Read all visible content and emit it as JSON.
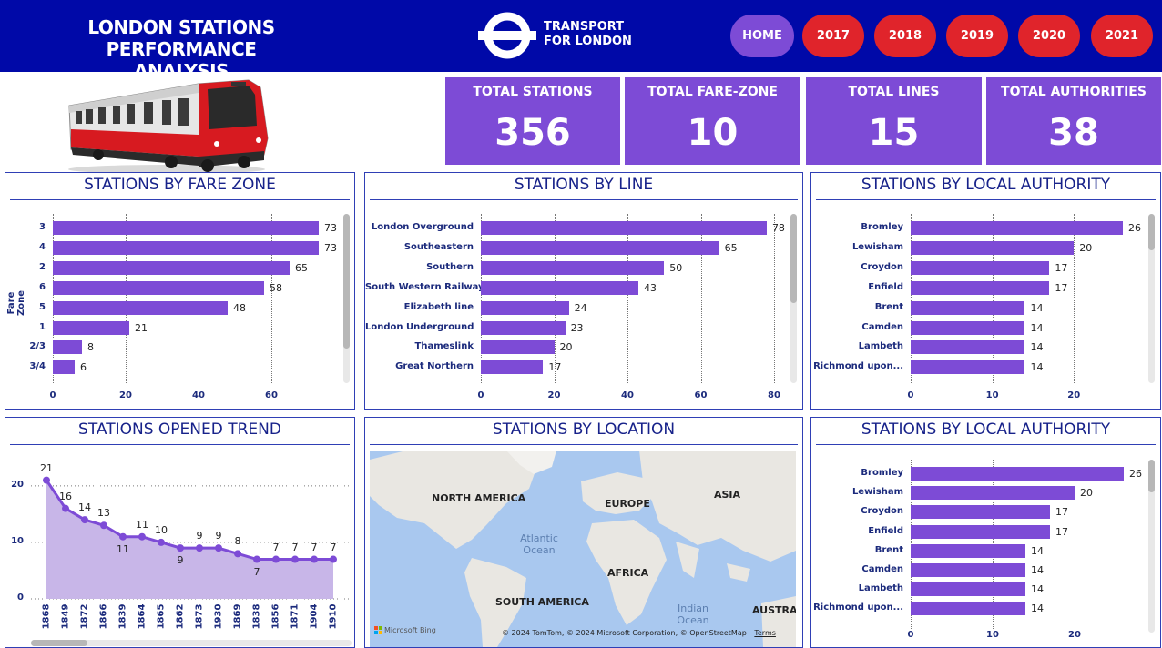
{
  "header": {
    "title_line1": "LONDON STATIONS PERFORMANCE",
    "title_line2": "ANALYSIS",
    "brand_line1": "TRANSPORT",
    "brand_line2": "FOR LONDON",
    "nav": [
      "HOME",
      "2017",
      "2018",
      "2019",
      "2020",
      "2021"
    ],
    "colors": {
      "header_bg": "#0009a8",
      "home": "#7d4bd6",
      "year": "#e0242b"
    }
  },
  "kpis": [
    {
      "label": "TOTAL STATIONS",
      "value": "356"
    },
    {
      "label": "TOTAL FARE-ZONE",
      "value": "10"
    },
    {
      "label": "TOTAL LINES",
      "value": "15"
    },
    {
      "label": "TOTAL AUTHORITIES",
      "value": "38"
    }
  ],
  "panels": {
    "fare_zone": {
      "title": "STATIONS BY FARE ZONE",
      "ylabel": "Fare Zone"
    },
    "line": {
      "title": "STATIONS BY LINE"
    },
    "authority": {
      "title": "STATIONS BY LOCAL AUTHORITY"
    },
    "trend": {
      "title": "STATIONS OPENED TREND"
    },
    "location": {
      "title": "STATIONS BY LOCATION"
    },
    "authority2": {
      "title": "STATIONS BY LOCAL AUTHORITY"
    }
  },
  "map": {
    "labels": [
      "NORTH AMERICA",
      "EUROPE",
      "ASIA",
      "AFRICA",
      "SOUTH AMERICA",
      "AUSTRAL"
    ],
    "oceans": [
      "Atlantic",
      "Ocean",
      "Indian",
      "Ocean"
    ],
    "bing": "Microsoft Bing",
    "copyright": "© 2024 TomTom, © 2024 Microsoft Corporation, © OpenStreetMap",
    "terms": "Terms"
  },
  "chart_data": [
    {
      "type": "bar",
      "title": "STATIONS BY FARE ZONE",
      "ylabel": "Fare Zone",
      "categories": [
        "3",
        "4",
        "2",
        "6",
        "5",
        "1",
        "2/3",
        "3/4"
      ],
      "values": [
        73,
        73,
        65,
        58,
        48,
        21,
        8,
        6
      ],
      "xticks": [
        0,
        20,
        40,
        60
      ],
      "xlim": [
        0,
        80
      ]
    },
    {
      "type": "bar",
      "title": "STATIONS BY LINE",
      "categories": [
        "London Overground",
        "Southeastern",
        "Southern",
        "South Western Railway",
        "Elizabeth line",
        "London Underground",
        "Thameslink",
        "Great Northern"
      ],
      "values": [
        78,
        65,
        50,
        43,
        24,
        23,
        20,
        17
      ],
      "xticks": [
        0,
        20,
        40,
        60,
        80
      ],
      "xlim": [
        0,
        80
      ]
    },
    {
      "type": "bar",
      "title": "STATIONS BY LOCAL AUTHORITY",
      "categories": [
        "Bromley",
        "Lewisham",
        "Croydon",
        "Enfield",
        "Brent",
        "Camden",
        "Lambeth",
        "Richmond upon..."
      ],
      "values": [
        26,
        20,
        17,
        17,
        14,
        14,
        14,
        14
      ],
      "xticks": [
        0,
        10,
        20
      ],
      "xlim": [
        0,
        26
      ]
    },
    {
      "type": "area",
      "title": "STATIONS OPENED TREND",
      "categories": [
        "1868",
        "1849",
        "1872",
        "1866",
        "1839",
        "1864",
        "1865",
        "1862",
        "1873",
        "1930",
        "1869",
        "1838",
        "1856",
        "1871",
        "1904",
        "1910"
      ],
      "values": [
        21,
        16,
        14,
        13,
        11,
        11,
        10,
        9,
        9,
        9,
        8,
        7,
        7,
        7,
        7,
        7
      ],
      "yticks": [
        0,
        10,
        20
      ],
      "ylim": [
        0,
        24
      ]
    },
    {
      "type": "bar",
      "title": "STATIONS BY LOCAL AUTHORITY",
      "categories": [
        "Bromley",
        "Lewisham",
        "Croydon",
        "Enfield",
        "Brent",
        "Camden",
        "Lambeth",
        "Richmond upon..."
      ],
      "values": [
        26,
        20,
        17,
        17,
        14,
        14,
        14,
        14
      ],
      "xticks": [
        0,
        10,
        20
      ],
      "xlim": [
        0,
        26
      ]
    }
  ]
}
